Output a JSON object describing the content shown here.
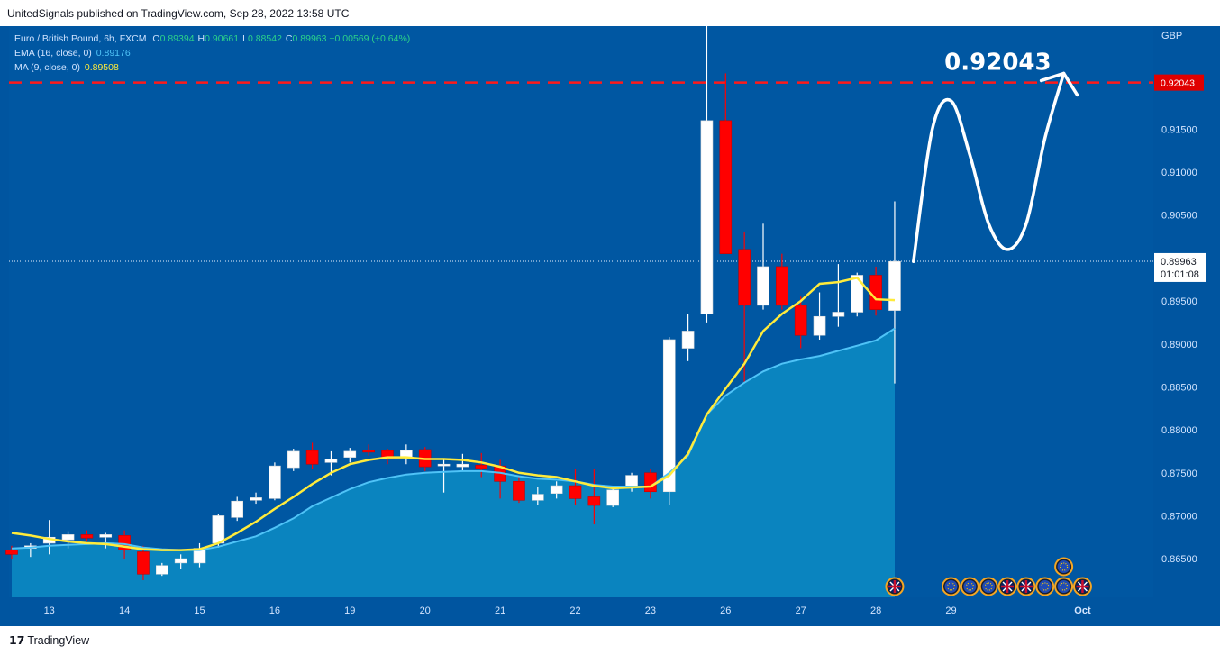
{
  "header": {
    "published": "UnitedSignals published on TradingView.com, Sep 28, 2022 13:58 UTC"
  },
  "legend": {
    "symbol": "Euro / British Pound, 6h, FXCM",
    "ohlc": [
      {
        "key": "O",
        "value": "0.89394"
      },
      {
        "key": "H",
        "value": "0.90661"
      },
      {
        "key": "L",
        "value": "0.88542"
      },
      {
        "key": "C",
        "value": "0.89963"
      }
    ],
    "change": "+0.00569 (+0.64%)",
    "ema_label": "EMA (16, close, 0)",
    "ema_value": "0.89176",
    "ma_label": "MA (9, close, 0)",
    "ma_value": "0.89508"
  },
  "footer": {
    "logo_mark": "17",
    "logo_text": "TradingView"
  },
  "colors": {
    "background": "#0055a0",
    "price_panel": "#0057a2",
    "up": "#ffffff",
    "down": "#ff0000",
    "ma": "#ffeb3b",
    "ema": "#4fc3f7",
    "ema_fill": "#0a84bf",
    "target": "#ff1a1a"
  },
  "chart_data": {
    "type": "candlestick",
    "title": "Euro / British Pound, 6h, FXCM",
    "currency": "GBP",
    "ylim": [
      0.8605,
      0.927
    ],
    "y_ticks": [
      "0.86500",
      "0.87000",
      "0.87500",
      "0.88000",
      "0.88500",
      "0.89000",
      "0.89500",
      "0.90000",
      "0.90500",
      "0.91000",
      "0.91500"
    ],
    "x_labels": [
      {
        "label": "13",
        "index": 2
      },
      {
        "label": "14",
        "index": 6
      },
      {
        "label": "15",
        "index": 10
      },
      {
        "label": "16",
        "index": 14
      },
      {
        "label": "19",
        "index": 18
      },
      {
        "label": "20",
        "index": 22
      },
      {
        "label": "21",
        "index": 26
      },
      {
        "label": "22",
        "index": 30
      },
      {
        "label": "23",
        "index": 34
      },
      {
        "label": "26",
        "index": 38
      },
      {
        "label": "27",
        "index": 42
      },
      {
        "label": "28",
        "index": 46
      },
      {
        "label": "29",
        "index": 50
      },
      {
        "label": "Oct",
        "index": 57
      }
    ],
    "candles": [
      {
        "o": 0.866,
        "h": 0.8665,
        "l": 0.865,
        "c": 0.8655
      },
      {
        "o": 0.8662,
        "h": 0.8668,
        "l": 0.8652,
        "c": 0.8665
      },
      {
        "o": 0.8668,
        "h": 0.8695,
        "l": 0.8655,
        "c": 0.8675
      },
      {
        "o": 0.8672,
        "h": 0.8682,
        "l": 0.8662,
        "c": 0.8678
      },
      {
        "o": 0.8678,
        "h": 0.8683,
        "l": 0.867,
        "c": 0.8674
      },
      {
        "o": 0.8675,
        "h": 0.868,
        "l": 0.8662,
        "c": 0.8678
      },
      {
        "o": 0.8677,
        "h": 0.8683,
        "l": 0.865,
        "c": 0.866
      },
      {
        "o": 0.8658,
        "h": 0.8665,
        "l": 0.8625,
        "c": 0.8632
      },
      {
        "o": 0.8632,
        "h": 0.8645,
        "l": 0.863,
        "c": 0.8642
      },
      {
        "o": 0.8645,
        "h": 0.8655,
        "l": 0.8638,
        "c": 0.865
      },
      {
        "o": 0.8645,
        "h": 0.8668,
        "l": 0.864,
        "c": 0.8662
      },
      {
        "o": 0.8668,
        "h": 0.8702,
        "l": 0.8663,
        "c": 0.87
      },
      {
        "o": 0.8698,
        "h": 0.8722,
        "l": 0.8694,
        "c": 0.8717
      },
      {
        "o": 0.8718,
        "h": 0.8727,
        "l": 0.8714,
        "c": 0.8721
      },
      {
        "o": 0.872,
        "h": 0.8762,
        "l": 0.8718,
        "c": 0.8758
      },
      {
        "o": 0.8756,
        "h": 0.8778,
        "l": 0.8752,
        "c": 0.8775
      },
      {
        "o": 0.8776,
        "h": 0.8785,
        "l": 0.8755,
        "c": 0.876
      },
      {
        "o": 0.8762,
        "h": 0.8775,
        "l": 0.8747,
        "c": 0.8766
      },
      {
        "o": 0.8768,
        "h": 0.8779,
        "l": 0.8762,
        "c": 0.8775
      },
      {
        "o": 0.8776,
        "h": 0.8783,
        "l": 0.877,
        "c": 0.8774
      },
      {
        "o": 0.8776,
        "h": 0.8778,
        "l": 0.876,
        "c": 0.8766
      },
      {
        "o": 0.8768,
        "h": 0.8783,
        "l": 0.876,
        "c": 0.8776
      },
      {
        "o": 0.8777,
        "h": 0.878,
        "l": 0.8752,
        "c": 0.8757
      },
      {
        "o": 0.8758,
        "h": 0.8765,
        "l": 0.8727,
        "c": 0.876
      },
      {
        "o": 0.8757,
        "h": 0.8772,
        "l": 0.8752,
        "c": 0.876
      },
      {
        "o": 0.8759,
        "h": 0.8773,
        "l": 0.8745,
        "c": 0.8755
      },
      {
        "o": 0.8758,
        "h": 0.8765,
        "l": 0.872,
        "c": 0.874
      },
      {
        "o": 0.874,
        "h": 0.8745,
        "l": 0.8715,
        "c": 0.8718
      },
      {
        "o": 0.8718,
        "h": 0.8733,
        "l": 0.8712,
        "c": 0.8725
      },
      {
        "o": 0.8726,
        "h": 0.874,
        "l": 0.872,
        "c": 0.8735
      },
      {
        "o": 0.8735,
        "h": 0.8755,
        "l": 0.8712,
        "c": 0.872
      },
      {
        "o": 0.8722,
        "h": 0.8755,
        "l": 0.869,
        "c": 0.8712
      },
      {
        "o": 0.8712,
        "h": 0.8735,
        "l": 0.871,
        "c": 0.873
      },
      {
        "o": 0.8733,
        "h": 0.875,
        "l": 0.8728,
        "c": 0.8747
      },
      {
        "o": 0.875,
        "h": 0.8755,
        "l": 0.872,
        "c": 0.8728
      },
      {
        "o": 0.8728,
        "h": 0.8908,
        "l": 0.8712,
        "c": 0.8905
      },
      {
        "o": 0.8895,
        "h": 0.8935,
        "l": 0.888,
        "c": 0.8915
      },
      {
        "o": 0.8935,
        "h": 0.929,
        "l": 0.8925,
        "c": 0.916
      },
      {
        "o": 0.916,
        "h": 0.9215,
        "l": 0.9005,
        "c": 0.9005
      },
      {
        "o": 0.901,
        "h": 0.903,
        "l": 0.8855,
        "c": 0.8945
      },
      {
        "o": 0.8945,
        "h": 0.904,
        "l": 0.894,
        "c": 0.899
      },
      {
        "o": 0.899,
        "h": 0.9005,
        "l": 0.894,
        "c": 0.8945
      },
      {
        "o": 0.8945,
        "h": 0.8955,
        "l": 0.8895,
        "c": 0.891
      },
      {
        "o": 0.891,
        "h": 0.896,
        "l": 0.8905,
        "c": 0.8932
      },
      {
        "o": 0.8932,
        "h": 0.8993,
        "l": 0.892,
        "c": 0.8937
      },
      {
        "o": 0.8937,
        "h": 0.8983,
        "l": 0.8932,
        "c": 0.898
      },
      {
        "o": 0.898,
        "h": 0.899,
        "l": 0.8933,
        "c": 0.894
      },
      {
        "o": 0.8939,
        "h": 0.9066,
        "l": 0.8854,
        "c": 0.8996
      }
    ],
    "ma": [
      0.868,
      0.8677,
      0.8673,
      0.867,
      0.8668,
      0.8667,
      0.8664,
      0.8661,
      0.866,
      0.866,
      0.8661,
      0.8668,
      0.868,
      0.8693,
      0.8708,
      0.8722,
      0.8737,
      0.875,
      0.876,
      0.8765,
      0.8768,
      0.8768,
      0.8766,
      0.8766,
      0.8765,
      0.8762,
      0.8757,
      0.875,
      0.8747,
      0.8745,
      0.874,
      0.8735,
      0.8732,
      0.8733,
      0.8734,
      0.8747,
      0.8772,
      0.8818,
      0.8848,
      0.8877,
      0.8915,
      0.8935,
      0.895,
      0.897,
      0.8972,
      0.8977,
      0.8952,
      0.8951
    ],
    "ema": [
      0.8662,
      0.8663,
      0.8665,
      0.8666,
      0.8667,
      0.8668,
      0.8667,
      0.8663,
      0.8661,
      0.866,
      0.866,
      0.8664,
      0.867,
      0.8676,
      0.8686,
      0.8697,
      0.8711,
      0.8721,
      0.8731,
      0.8739,
      0.8744,
      0.8748,
      0.875,
      0.8751,
      0.8752,
      0.8752,
      0.875,
      0.8746,
      0.8743,
      0.8742,
      0.874,
      0.8736,
      0.8734,
      0.8734,
      0.8734,
      0.875,
      0.877,
      0.8818,
      0.884,
      0.8855,
      0.8868,
      0.8877,
      0.8882,
      0.8886,
      0.8892,
      0.8898,
      0.8904,
      0.8918
    ],
    "target_level": "0.92043",
    "target_price": 0.92043,
    "current_price": "0.89963",
    "current_value": 0.89963,
    "countdown": "01:01:08",
    "projection_path": [
      [
        48,
        0.8996
      ],
      [
        49,
        0.915
      ],
      [
        50,
        0.9183
      ],
      [
        51,
        0.912
      ],
      [
        52,
        0.904
      ],
      [
        53,
        0.901
      ],
      [
        54,
        0.904
      ],
      [
        55,
        0.914
      ],
      [
        56,
        0.9215
      ]
    ],
    "event_rows": [
      [
        "uk",
        null,
        null,
        "eu",
        "eu",
        "eu",
        "uk",
        "uk",
        "eu",
        "eu",
        "uk"
      ],
      [
        null,
        null,
        null,
        null,
        null,
        null,
        null,
        null,
        null,
        "eu",
        null
      ]
    ]
  }
}
